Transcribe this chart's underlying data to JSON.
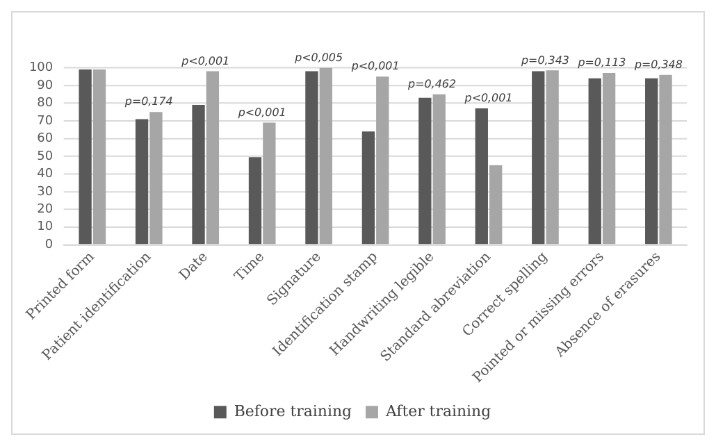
{
  "chart_data": {
    "type": "bar",
    "categories": [
      "Printed form",
      "Patient identification",
      "Date",
      "Time",
      "Signature",
      "Identification stamp",
      "Handwriting legible",
      "Standard abreviation",
      "Correct spelling",
      "Pointed or missing errors",
      "Absence of erasures"
    ],
    "series": [
      {
        "name": "Before training",
        "color": "#595959",
        "values": [
          99,
          71,
          79,
          49.5,
          98,
          64,
          83,
          77,
          98,
          94,
          94
        ]
      },
      {
        "name": "After training",
        "color": "#a6a6a6",
        "values": [
          99,
          75,
          98,
          69,
          100,
          95,
          85,
          45,
          98.5,
          97,
          96
        ]
      }
    ],
    "ylim": [
      0,
      100
    ],
    "yticks": [
      0,
      10,
      20,
      30,
      40,
      50,
      60,
      70,
      80,
      90,
      100
    ],
    "grid": "y",
    "legend": "bottom",
    "annotations": [
      {
        "text": "p=0,174",
        "x": "Patient identification",
        "y": 75
      },
      {
        "text": "p<0,001",
        "x": "Date",
        "y": 98
      },
      {
        "text": "p<0,001",
        "x": "Time",
        "y": 69
      },
      {
        "text": "p<0,005",
        "x": "Signature",
        "y": 100
      },
      {
        "text": "p<0,001",
        "x": "Identification stamp",
        "y": 95
      },
      {
        "text": "p=0,462",
        "x": "Handwriting legible",
        "y": 85
      },
      {
        "text": "p<0,001",
        "x": "Standard abreviation",
        "y": 77
      },
      {
        "text": "p=0,343",
        "x": "Correct spelling",
        "y": 98.5
      },
      {
        "text": "p=0,113",
        "x": "Pointed or missing errors",
        "y": 97
      },
      {
        "text": "p=0,348",
        "x": "Absence of erasures",
        "y": 96
      }
    ]
  }
}
